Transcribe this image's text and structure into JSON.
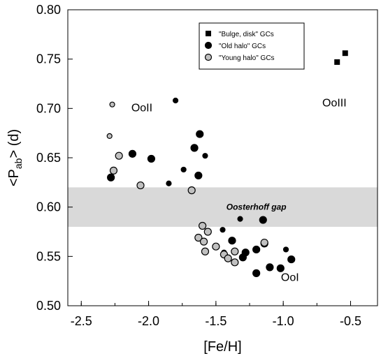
{
  "chart_data": {
    "type": "scatter",
    "xlabel": "[Fe/H]",
    "ylabel_main": "<P",
    "ylabel_sub": "ab",
    "ylabel_tail": "> (d)",
    "xlim": [
      -2.6,
      -0.3
    ],
    "ylim": [
      0.5,
      0.8
    ],
    "xticks": [
      -2.5,
      -2.0,
      -1.5,
      -1.0,
      -0.5
    ],
    "xtick_labels": [
      "-2.5",
      "-2.0",
      "-1.5",
      "-1.0",
      "-0.5"
    ],
    "yticks": [
      0.5,
      0.55,
      0.6,
      0.65,
      0.7,
      0.75,
      0.8
    ],
    "ytick_labels": [
      "0.50",
      "0.55",
      "0.60",
      "0.65",
      "0.70",
      "0.75",
      "0.80"
    ],
    "gap_band": {
      "y_from": 0.58,
      "y_to": 0.62,
      "label": "Oosterhoff gap",
      "color": "#d9d9d9"
    },
    "annotations": [
      {
        "text": "OoII",
        "x": -2.05,
        "y": 0.697
      },
      {
        "text": "OoIII",
        "x": -0.62,
        "y": 0.702
      },
      {
        "text": "OoI",
        "x": -0.95,
        "y": 0.525
      }
    ],
    "legend": {
      "placement": "top-right",
      "entries": [
        {
          "label": "\"Bulge, disk\" GCs",
          "marker": "square",
          "color": "#000000"
        },
        {
          "label": "\"Old halo\" GCs",
          "marker": "circle",
          "color": "#000000"
        },
        {
          "label": "\"Young halo\" GCs",
          "marker": "circle",
          "color": "#c0c0c0"
        }
      ]
    },
    "series": [
      {
        "name": "\"Bulge, disk\" GCs",
        "marker": "square",
        "fill": "#000000",
        "points": [
          {
            "x": -0.6,
            "y": 0.747,
            "s": 8
          },
          {
            "x": -0.54,
            "y": 0.756,
            "s": 8
          }
        ]
      },
      {
        "name": "\"Old halo\" GCs",
        "marker": "circle",
        "fill": "#000000",
        "points": [
          {
            "x": -1.8,
            "y": 0.708,
            "s": 3.5
          },
          {
            "x": -1.62,
            "y": 0.674,
            "s": 5
          },
          {
            "x": -1.66,
            "y": 0.66,
            "s": 5
          },
          {
            "x": -1.58,
            "y": 0.652,
            "s": 3.5
          },
          {
            "x": -2.12,
            "y": 0.654,
            "s": 5
          },
          {
            "x": -1.98,
            "y": 0.649,
            "s": 5
          },
          {
            "x": -1.74,
            "y": 0.638,
            "s": 3.5
          },
          {
            "x": -1.63,
            "y": 0.632,
            "s": 5
          },
          {
            "x": -2.28,
            "y": 0.63,
            "s": 5
          },
          {
            "x": -1.85,
            "y": 0.624,
            "s": 3.5
          },
          {
            "x": -1.32,
            "y": 0.588,
            "s": 3.5
          },
          {
            "x": -1.15,
            "y": 0.587,
            "s": 5
          },
          {
            "x": -1.45,
            "y": 0.577,
            "s": 3.5
          },
          {
            "x": -1.38,
            "y": 0.566,
            "s": 5
          },
          {
            "x": -1.14,
            "y": 0.563,
            "s": 5
          },
          {
            "x": -0.98,
            "y": 0.557,
            "s": 3.5
          },
          {
            "x": -1.2,
            "y": 0.557,
            "s": 5
          },
          {
            "x": -1.28,
            "y": 0.554,
            "s": 5
          },
          {
            "x": -1.44,
            "y": 0.554,
            "s": 3.5
          },
          {
            "x": -1.3,
            "y": 0.549,
            "s": 5
          },
          {
            "x": -0.94,
            "y": 0.547,
            "s": 5
          },
          {
            "x": -1.1,
            "y": 0.539,
            "s": 5
          },
          {
            "x": -1.02,
            "y": 0.538,
            "s": 5
          },
          {
            "x": -1.2,
            "y": 0.533,
            "s": 5
          }
        ]
      },
      {
        "name": "\"Young halo\" GCs",
        "marker": "circle",
        "fill": "#c0c0c0",
        "points": [
          {
            "x": -2.27,
            "y": 0.704,
            "s": 3.5
          },
          {
            "x": -2.29,
            "y": 0.672,
            "s": 3.5
          },
          {
            "x": -2.22,
            "y": 0.652,
            "s": 5
          },
          {
            "x": -2.26,
            "y": 0.637,
            "s": 5
          },
          {
            "x": -2.06,
            "y": 0.622,
            "s": 5
          },
          {
            "x": -1.68,
            "y": 0.617,
            "s": 5
          },
          {
            "x": -1.6,
            "y": 0.581,
            "s": 5
          },
          {
            "x": -1.56,
            "y": 0.575,
            "s": 5
          },
          {
            "x": -1.63,
            "y": 0.569,
            "s": 5
          },
          {
            "x": -1.59,
            "y": 0.565,
            "s": 5
          },
          {
            "x": -1.5,
            "y": 0.56,
            "s": 5
          },
          {
            "x": -1.14,
            "y": 0.564,
            "s": 5
          },
          {
            "x": -1.58,
            "y": 0.555,
            "s": 5
          },
          {
            "x": -1.36,
            "y": 0.555,
            "s": 5
          },
          {
            "x": -1.44,
            "y": 0.552,
            "s": 5
          },
          {
            "x": -1.41,
            "y": 0.548,
            "s": 5
          },
          {
            "x": -1.36,
            "y": 0.544,
            "s": 5
          }
        ]
      }
    ]
  }
}
